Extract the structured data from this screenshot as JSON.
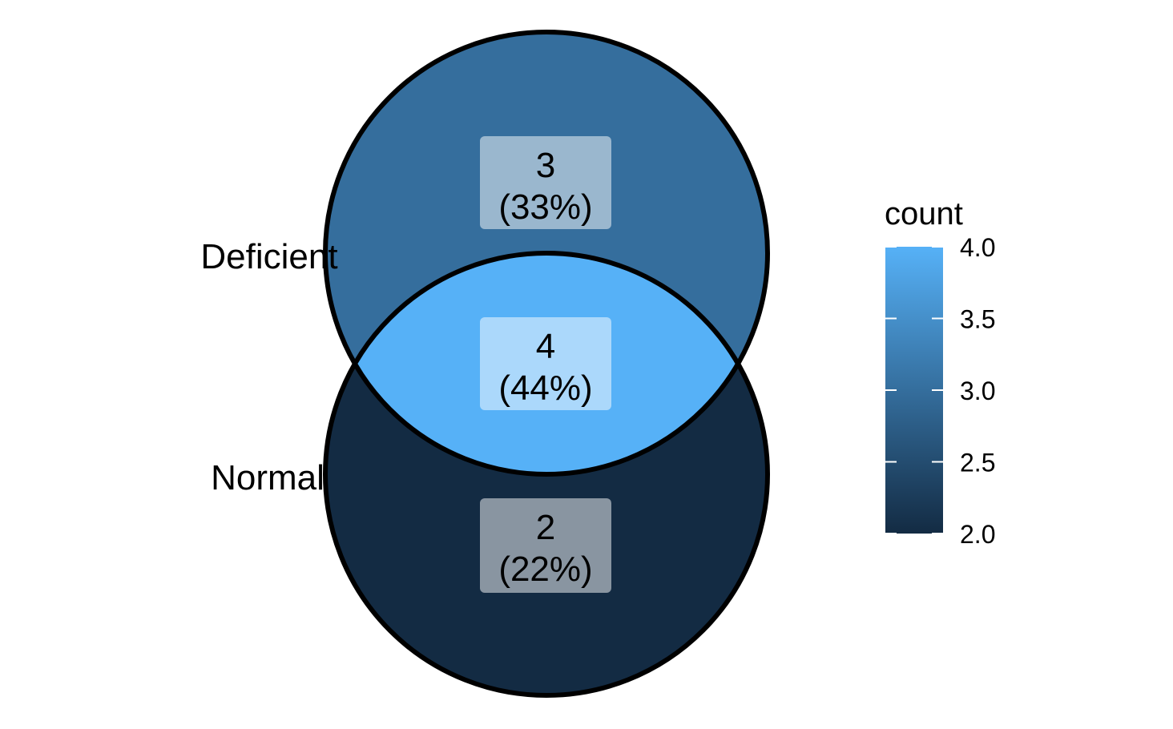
{
  "sets": [
    "Deficient",
    "Normal"
  ],
  "regions": [
    {
      "id": "deficient-only",
      "count": "3",
      "percent": "(33%)",
      "value": 3
    },
    {
      "id": "intersection",
      "count": "4",
      "percent": "(44%)",
      "value": 4
    },
    {
      "id": "normal-only",
      "count": "2",
      "percent": "(22%)",
      "value": 2
    }
  ],
  "legend": {
    "title": "count",
    "min": 2.0,
    "max": 4.0,
    "ticks": [
      "2.0",
      "2.5",
      "3.0",
      "3.5",
      "4.0"
    ],
    "low_color": "#132B43",
    "high_color": "#56B1F7"
  }
}
